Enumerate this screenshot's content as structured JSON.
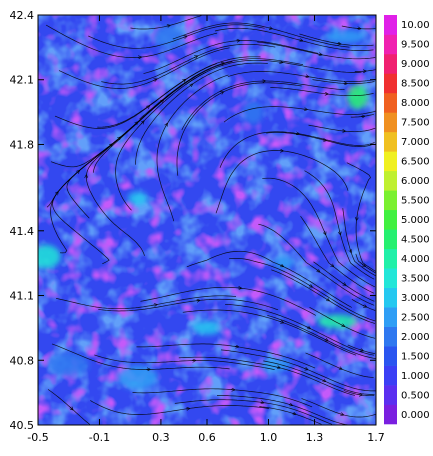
{
  "chart_data": {
    "type": "heatmap",
    "title": "",
    "xlabel": "",
    "ylabel": "",
    "xlim": [
      -0.5,
      1.7
    ],
    "ylim": [
      40.5,
      42.4
    ],
    "x_ticks": [
      -0.5,
      -0.1,
      0.3,
      0.6,
      1.0,
      1.3,
      1.7
    ],
    "x_tick_labels": [
      "-0.5",
      "-0.1",
      "0.3",
      "0.6",
      "1.0",
      "1.3",
      "1.7"
    ],
    "y_ticks": [
      40.5,
      40.8,
      41.1,
      41.4,
      41.8,
      42.1,
      42.4
    ],
    "y_tick_labels": [
      "40.5",
      "40.8",
      "41.1",
      "41.4",
      "41.8",
      "42.1",
      "42.4"
    ],
    "overlay": "streamlines with arrowheads",
    "colorbar": {
      "labels": [
        "0.000",
        "0.500",
        "1.000",
        "1.500",
        "2.000",
        "2.500",
        "3.000",
        "3.500",
        "4.000",
        "4.500",
        "5.000",
        "5.500",
        "6.000",
        "6.500",
        "7.000",
        "7.500",
        "8.000",
        "8.500",
        "9.000",
        "9.500",
        "10.00"
      ],
      "colors": [
        "#7a1fe0",
        "#5b2ff0",
        "#3b3ff5",
        "#2a55f0",
        "#2f78f0",
        "#2f9ef5",
        "#25c8f0",
        "#22e6d8",
        "#20f0a8",
        "#25f070",
        "#40f040",
        "#7af030",
        "#bff030",
        "#f0f020",
        "#f0c020",
        "#f09020",
        "#f06020",
        "#f03030",
        "#f02070",
        "#f020b0",
        "#e020e8"
      ]
    },
    "features": [
      {
        "x": 0.15,
        "y": 41.55,
        "value": 3.0
      },
      {
        "x": -0.45,
        "y": 41.28,
        "value": 3.5
      },
      {
        "x": 1.45,
        "y": 40.98,
        "value": 4.0
      },
      {
        "x": 1.58,
        "y": 42.02,
        "value": 4.5
      },
      {
        "x": 0.6,
        "y": 40.95,
        "value": 3.0
      },
      {
        "x": 0.15,
        "y": 40.72,
        "value": 2.5
      },
      {
        "x": 1.1,
        "y": 41.25,
        "value": 2.5
      },
      {
        "x": 0.35,
        "y": 42.3,
        "value": 2.0
      },
      {
        "x": 1.5,
        "y": 42.3,
        "value": 2.5
      },
      {
        "x": 0.9,
        "y": 41.95,
        "value": 2.0
      },
      {
        "x": 1.05,
        "y": 40.78,
        "value": 2.5
      },
      {
        "x": -0.3,
        "y": 40.78,
        "value": 2.0
      }
    ]
  }
}
